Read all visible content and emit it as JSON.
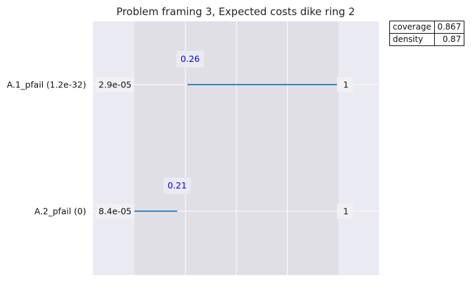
{
  "chart_data": {
    "type": "box-limits",
    "title": "Problem framing 3, Expected costs dike ring 2",
    "rows": [
      {
        "label": "A.1_pfail (1.2e-32)",
        "box_min": 0.26,
        "box_max": 1.0,
        "lower_label": "2.9e-05",
        "upper_label": "1",
        "annotation": "0.26"
      },
      {
        "label": "A.2_pfail (0)",
        "box_min": 0.0,
        "box_max": 0.21,
        "lower_label": "8.4e-05",
        "upper_label": "1",
        "annotation": "0.21"
      }
    ],
    "xlim": [
      0,
      1
    ],
    "grid": true,
    "line_color": "#1f77b4",
    "annotation_color": "#0000ee"
  },
  "stats": [
    {
      "name": "coverage",
      "value": "0.867"
    },
    {
      "name": "density",
      "value": "0.87"
    }
  ]
}
